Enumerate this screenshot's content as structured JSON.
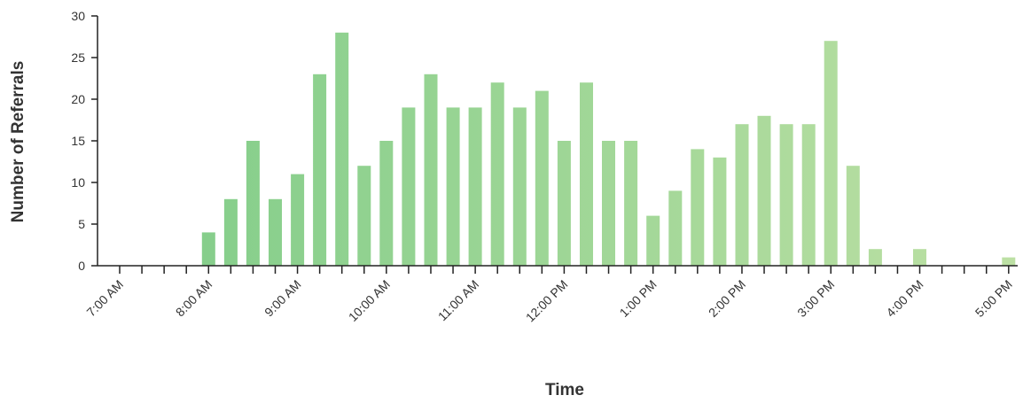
{
  "chart_data": {
    "type": "bar",
    "title": "",
    "xlabel": "Time",
    "ylabel": "Number of Referrals",
    "ylim": [
      0,
      30
    ],
    "y_ticks": [
      0,
      5,
      10,
      15,
      20,
      25,
      30
    ],
    "grid": false,
    "x_tick_labels": [
      "7:00 AM",
      "8:00 AM",
      "9:00 AM",
      "10:00 AM",
      "11:00 AM",
      "12:00 PM",
      "1:00 PM",
      "2:00 PM",
      "3:00 PM",
      "4:00 PM",
      "5:00 PM"
    ],
    "categories": [
      "7:00 AM",
      "7:15 AM",
      "7:30 AM",
      "7:45 AM",
      "8:00 AM",
      "8:15 AM",
      "8:30 AM",
      "8:45 AM",
      "9:00 AM",
      "9:15 AM",
      "9:30 AM",
      "9:45 AM",
      "10:00 AM",
      "10:15 AM",
      "10:30 AM",
      "10:45 AM",
      "11:00 AM",
      "11:15 AM",
      "11:30 AM",
      "11:45 AM",
      "12:00 PM",
      "12:15 PM",
      "12:30 PM",
      "12:45 PM",
      "1:00 PM",
      "1:15 PM",
      "1:30 PM",
      "1:45 PM",
      "2:00 PM",
      "2:15 PM",
      "2:30 PM",
      "2:45 PM",
      "3:00 PM",
      "3:15 PM",
      "3:30 PM",
      "3:45 PM",
      "4:00 PM",
      "4:15 PM",
      "4:30 PM",
      "4:45 PM",
      "5:00 PM"
    ],
    "values": [
      0,
      0,
      0,
      0,
      4,
      8,
      15,
      8,
      11,
      23,
      28,
      12,
      15,
      19,
      23,
      19,
      19,
      22,
      19,
      21,
      15,
      22,
      15,
      15,
      6,
      9,
      14,
      13,
      17,
      18,
      17,
      17,
      27,
      12,
      2,
      0,
      2,
      0,
      0,
      0,
      1
    ],
    "colors": {
      "bar_start": "#7fcc88",
      "bar_end": "#bde0a4",
      "axis": "#222222",
      "text": "#333333"
    }
  }
}
